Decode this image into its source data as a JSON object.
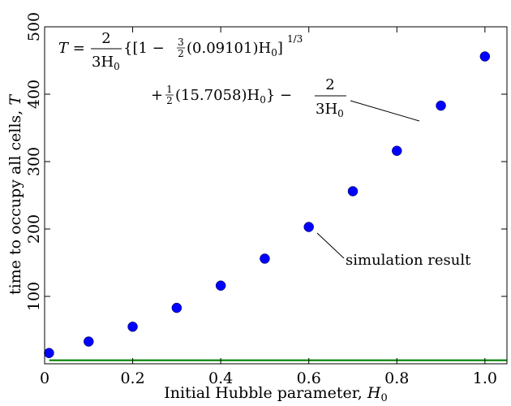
{
  "chart_data": {
    "type": "scatter",
    "xlabel": "Initial Hubble parameter, ",
    "xlabel_var": "H",
    "xlabel_sub": "0",
    "ylabel": "time to occupy all cells, ",
    "ylabel_var": "T",
    "xlim": [
      0,
      1.05
    ],
    "ylim": [
      0,
      500
    ],
    "xticks": [
      0,
      0.2,
      0.4,
      0.6,
      0.8,
      1.0
    ],
    "xtick_labels": [
      "0",
      "0.2",
      "0.4",
      "0.6",
      "0.8",
      "1.0"
    ],
    "yticks": [
      100,
      200,
      300,
      400,
      500
    ],
    "ytick_labels": [
      "100",
      "200",
      "300",
      "400",
      "500"
    ],
    "grid": false,
    "series": [
      {
        "name": "simulation result",
        "kind": "points",
        "color": "#0000ff",
        "x": [
          0.01,
          0.1,
          0.2,
          0.3,
          0.4,
          0.5,
          0.6,
          0.7,
          0.8,
          0.9,
          1.0
        ],
        "y": [
          16,
          33,
          55,
          83,
          116,
          156,
          203,
          256,
          316,
          383,
          456
        ]
      },
      {
        "name": "fit",
        "kind": "line",
        "color": "#008000",
        "a": 0.09101,
        "b": 15.7058
      }
    ],
    "annotations": {
      "equation_line1_prefix": "T = ",
      "equation_frac_num": "2",
      "equation_frac_den": "3H",
      "equation_frac_den_sub": "0",
      "equation_line1_body": "{[1 − ",
      "equation_small_frac_num": "3",
      "equation_small_frac_den": "2",
      "equation_line1_rest": "(0.09101)H",
      "equation_line1_sub": "0",
      "equation_line1_close": "]",
      "equation_exponent": "1/3",
      "equation_line2_prefix": "+ ",
      "equation_half_num": "1",
      "equation_half_den": "2",
      "equation_line2_body": "(15.7058)H",
      "equation_line2_sub": "0",
      "equation_line2_close": "} −",
      "equation_frac2_num": "2",
      "equation_frac2_den": "3H",
      "equation_frac2_den_sub": "0",
      "point_label": "simulation result"
    }
  }
}
